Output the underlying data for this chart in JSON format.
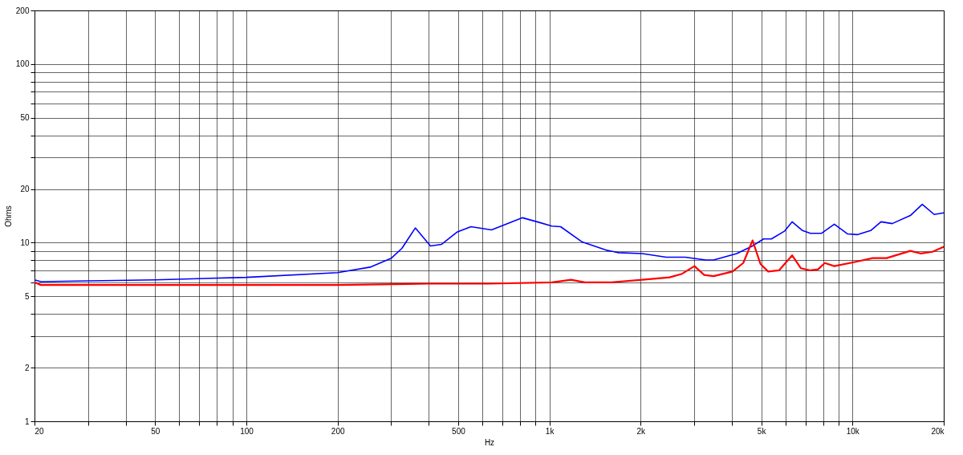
{
  "chart_data": {
    "type": "line",
    "xlabel": "Hz",
    "ylabel": "Ohms",
    "log": "xy",
    "grid": true,
    "marker": "none",
    "line_style": "solid",
    "xlim": [
      20,
      20000
    ],
    "ylim": [
      1,
      200
    ],
    "xticks": [
      20,
      {
        "value": 30,
        "label": null
      },
      {
        "value": 40,
        "label": null
      },
      50,
      {
        "value": 60,
        "label": null
      },
      {
        "value": 70,
        "label": null
      },
      {
        "value": 80,
        "label": null
      },
      {
        "value": 90,
        "label": null
      },
      100,
      200,
      {
        "value": 300,
        "label": null
      },
      {
        "value": 400,
        "label": null
      },
      500,
      {
        "value": 600,
        "label": null
      },
      {
        "value": 700,
        "label": null
      },
      {
        "value": 800,
        "label": null
      },
      {
        "value": 900,
        "label": null
      },
      {
        "value": 1000,
        "label": "1k"
      },
      {
        "value": 2000,
        "label": "2k"
      },
      {
        "value": 3000,
        "label": null
      },
      {
        "value": 4000,
        "label": null
      },
      {
        "value": 5000,
        "label": "5k"
      },
      {
        "value": 6000,
        "label": null
      },
      {
        "value": 7000,
        "label": null
      },
      {
        "value": 8000,
        "label": null
      },
      {
        "value": 9000,
        "label": null
      },
      {
        "value": 10000,
        "label": "10k"
      },
      {
        "value": 20000,
        "label": "20k"
      }
    ],
    "yticks": [
      1,
      2,
      {
        "value": 3,
        "label": null
      },
      {
        "value": 4,
        "label": null
      },
      5,
      {
        "value": 6,
        "label": null
      },
      {
        "value": 7,
        "label": null
      },
      {
        "value": 8,
        "label": null
      },
      {
        "value": 9,
        "label": null
      },
      10,
      20,
      {
        "value": 30,
        "label": null
      },
      {
        "value": 40,
        "label": null
      },
      50,
      {
        "value": 60,
        "label": null
      },
      {
        "value": 70,
        "label": null
      },
      {
        "value": 80,
        "label": null
      },
      {
        "value": 90,
        "label": null
      },
      100,
      200
    ],
    "series": [
      {
        "color": "#0000ff",
        "x": [
          20,
          21,
          27.5,
          50,
          100,
          200,
          256,
          301,
          326,
          361,
          405,
          441,
          497,
          551,
          644,
          815,
          925,
          1019,
          1089,
          1283,
          1535,
          1691,
          2024,
          2427,
          2805,
          3281,
          3480,
          4150,
          4680,
          5090,
          5400,
          5960,
          6320,
          6840,
          7260,
          7910,
          8710,
          9640,
          10360,
          11480,
          12420,
          13520,
          15520,
          16990,
          18600,
          20000
        ],
        "values": [
          6.2,
          6.05,
          6.1,
          6.2,
          6.4,
          6.8,
          7.3,
          8.2,
          9.3,
          12.1,
          9.6,
          9.8,
          11.5,
          12.3,
          11.8,
          13.8,
          13.0,
          12.4,
          12.3,
          10.1,
          9.1,
          8.8,
          8.7,
          8.3,
          8.3,
          8.0,
          8.0,
          8.7,
          9.6,
          10.5,
          10.5,
          11.6,
          13.1,
          11.7,
          11.3,
          11.3,
          12.7,
          11.2,
          11.1,
          11.7,
          13.1,
          12.8,
          14.2,
          16.4,
          14.4,
          14.7
        ]
      },
      {
        "color": "#ff0000",
        "x": [
          20,
          21,
          50,
          100,
          200,
          397,
          630,
          1019,
          1179,
          1309,
          1590,
          2024,
          2490,
          2740,
          3010,
          3240,
          3480,
          4020,
          4360,
          4680,
          4970,
          5270,
          5720,
          6320,
          6750,
          7260,
          7700,
          8100,
          8710,
          10180,
          11660,
          12960,
          15520,
          16830,
          18370,
          20000
        ],
        "values": [
          6.0,
          5.8,
          5.8,
          5.8,
          5.8,
          5.9,
          5.9,
          6.0,
          6.2,
          6.0,
          6.0,
          6.2,
          6.4,
          6.7,
          7.4,
          6.6,
          6.5,
          6.9,
          7.7,
          10.3,
          7.6,
          6.9,
          7.0,
          8.5,
          7.2,
          7.0,
          7.1,
          7.7,
          7.4,
          7.8,
          8.2,
          8.2,
          9.0,
          8.7,
          8.9,
          9.5
        ]
      }
    ]
  }
}
